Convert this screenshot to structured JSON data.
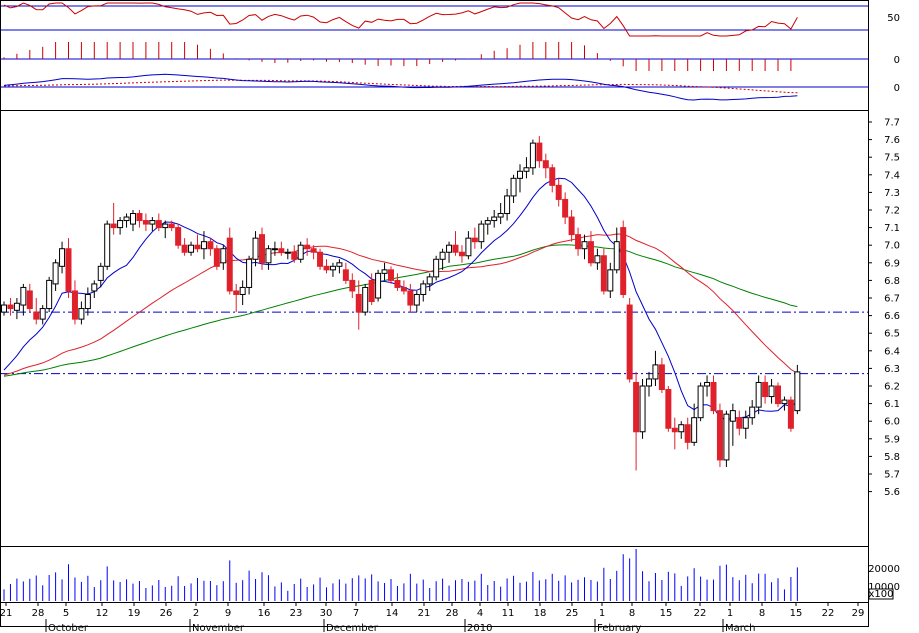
{
  "chart_data": {
    "type": "candlestick",
    "colors": {
      "background": "#ffffff",
      "frame": "#000000",
      "up_body": "#ffffff",
      "down_body": "#e0202a",
      "candle_outline": "#000000",
      "ma_short": "#0000cc",
      "ma_medium": "#e0202a",
      "ma_long": "#008000",
      "level_line": "#0000cc",
      "volume_bar": "#0000ff",
      "oscillator_line": "#cc0000",
      "macd_hist": "#cc0000",
      "macd_line": "#0000cc",
      "signal_line": "#cc0000"
    },
    "price_axis": {
      "ticks": [
        "7.7",
        "7.6",
        "7.5",
        "7.4",
        "7.3",
        "7.2",
        "7.1",
        "7.0",
        "6.9",
        "6.8",
        "6.7",
        "6.6",
        "6.5",
        "6.4",
        "6.3",
        "6.2",
        "6.1",
        "6.0",
        "5.9",
        "5.8",
        "5.7",
        "5.6"
      ],
      "range": [
        5.55,
        7.75
      ]
    },
    "oscillator_axis": {
      "ticks": [
        "50"
      ]
    },
    "histogram_axis": {
      "ticks": [
        "0"
      ]
    },
    "macd_axis": {
      "ticks": [
        "0"
      ]
    },
    "volume_axis": {
      "ticks": [
        "20000",
        "10000"
      ],
      "scale_label": "x100"
    },
    "x_day_ticks": [
      "21",
      "28",
      "5",
      "12",
      "19",
      "26",
      "2",
      "9",
      "16",
      "23",
      "30",
      "7",
      "14",
      "21",
      "28",
      "4",
      "11",
      "18",
      "25",
      "1",
      "8",
      "15",
      "22",
      "1",
      "8",
      "15",
      "22",
      "29"
    ],
    "x_month_labels": [
      "October",
      "November",
      "December",
      "2010",
      "February",
      "March"
    ],
    "horizontal_levels": [
      6.62,
      6.27
    ],
    "candles": [
      [
        6.62,
        6.68,
        6.6,
        6.66
      ],
      [
        6.66,
        6.7,
        6.6,
        6.64
      ],
      [
        6.63,
        6.7,
        6.58,
        6.67
      ],
      [
        6.66,
        6.78,
        6.6,
        6.76
      ],
      [
        6.74,
        6.78,
        6.62,
        6.64
      ],
      [
        6.62,
        6.7,
        6.55,
        6.58
      ],
      [
        6.58,
        6.66,
        6.55,
        6.64
      ],
      [
        6.64,
        6.82,
        6.62,
        6.8
      ],
      [
        6.78,
        6.92,
        6.74,
        6.9
      ],
      [
        6.88,
        7.02,
        6.84,
        6.98
      ],
      [
        6.98,
        7.04,
        6.7,
        6.74
      ],
      [
        6.74,
        6.8,
        6.55,
        6.58
      ],
      [
        6.58,
        6.68,
        6.55,
        6.64
      ],
      [
        6.64,
        6.76,
        6.6,
        6.72
      ],
      [
        6.74,
        6.8,
        6.7,
        6.78
      ],
      [
        6.8,
        6.9,
        6.76,
        6.88
      ],
      [
        6.88,
        7.14,
        6.86,
        7.12
      ],
      [
        7.12,
        7.24,
        7.06,
        7.1
      ],
      [
        7.1,
        7.16,
        7.06,
        7.14
      ],
      [
        7.14,
        7.18,
        7.1,
        7.16
      ],
      [
        7.12,
        7.2,
        7.08,
        7.18
      ],
      [
        7.18,
        7.2,
        7.1,
        7.14
      ],
      [
        7.14,
        7.18,
        7.08,
        7.12
      ],
      [
        7.12,
        7.16,
        7.08,
        7.14
      ],
      [
        7.14,
        7.18,
        7.08,
        7.1
      ],
      [
        7.1,
        7.14,
        7.04,
        7.12
      ],
      [
        7.12,
        7.14,
        7.08,
        7.1
      ],
      [
        7.1,
        7.12,
        6.98,
        7.0
      ],
      [
        7.0,
        7.04,
        6.94,
        6.96
      ],
      [
        6.96,
        7.02,
        6.94,
        7.0
      ],
      [
        7.0,
        7.06,
        6.96,
        6.98
      ],
      [
        6.98,
        7.08,
        6.92,
        7.02
      ],
      [
        7.02,
        7.04,
        6.94,
        6.98
      ],
      [
        6.98,
        7.0,
        6.86,
        6.88
      ],
      [
        6.9,
        7.0,
        6.86,
        6.98
      ],
      [
        7.04,
        7.1,
        6.72,
        6.74
      ],
      [
        6.74,
        6.78,
        6.62,
        6.72
      ],
      [
        6.72,
        6.8,
        6.66,
        6.76
      ],
      [
        6.76,
        6.94,
        6.72,
        6.92
      ],
      [
        6.92,
        7.08,
        6.88,
        7.04
      ],
      [
        7.06,
        7.1,
        6.86,
        6.9
      ],
      [
        6.9,
        7.0,
        6.86,
        6.98
      ],
      [
        6.98,
        7.02,
        6.94,
        6.98
      ],
      [
        6.98,
        7.02,
        6.94,
        6.96
      ],
      [
        6.96,
        6.98,
        6.92,
        6.96
      ],
      [
        6.96,
        7.0,
        6.9,
        6.92
      ],
      [
        6.92,
        7.02,
        6.9,
        7.0
      ],
      [
        7.0,
        7.04,
        6.94,
        6.98
      ],
      [
        6.98,
        7.0,
        6.92,
        6.96
      ],
      [
        6.96,
        6.98,
        6.86,
        6.88
      ],
      [
        6.88,
        6.92,
        6.84,
        6.86
      ],
      [
        6.86,
        6.9,
        6.82,
        6.88
      ],
      [
        6.88,
        6.92,
        6.84,
        6.9
      ],
      [
        6.86,
        6.9,
        6.78,
        6.8
      ],
      [
        6.8,
        6.84,
        6.7,
        6.74
      ],
      [
        6.72,
        6.8,
        6.52,
        6.62
      ],
      [
        6.62,
        6.78,
        6.6,
        6.76
      ],
      [
        6.8,
        6.84,
        6.66,
        6.68
      ],
      [
        6.7,
        6.86,
        6.68,
        6.84
      ],
      [
        6.84,
        6.9,
        6.8,
        6.86
      ],
      [
        6.86,
        6.88,
        6.78,
        6.8
      ],
      [
        6.8,
        6.84,
        6.74,
        6.76
      ],
      [
        6.76,
        6.8,
        6.72,
        6.74
      ],
      [
        6.74,
        6.78,
        6.62,
        6.66
      ],
      [
        6.66,
        6.74,
        6.62,
        6.72
      ],
      [
        6.72,
        6.8,
        6.68,
        6.78
      ],
      [
        6.78,
        6.84,
        6.74,
        6.82
      ],
      [
        6.82,
        6.94,
        6.8,
        6.92
      ],
      [
        6.92,
        6.98,
        6.86,
        6.96
      ],
      [
        6.96,
        7.02,
        6.9,
        7.0
      ],
      [
        7.0,
        7.08,
        6.94,
        6.96
      ],
      [
        6.96,
        7.0,
        6.9,
        6.94
      ],
      [
        6.94,
        7.08,
        6.92,
        7.04
      ],
      [
        7.04,
        7.1,
        6.98,
        7.02
      ],
      [
        7.02,
        7.14,
        6.98,
        7.12
      ],
      [
        7.12,
        7.16,
        7.06,
        7.14
      ],
      [
        7.14,
        7.2,
        7.1,
        7.16
      ],
      [
        7.16,
        7.24,
        7.12,
        7.18
      ],
      [
        7.18,
        7.32,
        7.14,
        7.28
      ],
      [
        7.28,
        7.4,
        7.24,
        7.38
      ],
      [
        7.38,
        7.46,
        7.3,
        7.42
      ],
      [
        7.42,
        7.5,
        7.38,
        7.44
      ],
      [
        7.44,
        7.6,
        7.4,
        7.58
      ],
      [
        7.58,
        7.62,
        7.44,
        7.48
      ],
      [
        7.48,
        7.52,
        7.38,
        7.44
      ],
      [
        7.44,
        7.46,
        7.3,
        7.34
      ],
      [
        7.34,
        7.38,
        7.22,
        7.26
      ],
      [
        7.26,
        7.3,
        7.12,
        7.16
      ],
      [
        7.16,
        7.2,
        7.02,
        7.06
      ],
      [
        7.06,
        7.1,
        6.94,
        6.98
      ],
      [
        6.98,
        7.06,
        6.92,
        7.02
      ],
      [
        7.02,
        7.08,
        6.88,
        6.9
      ],
      [
        6.9,
        6.98,
        6.86,
        6.94
      ],
      [
        6.94,
        6.98,
        6.72,
        6.74
      ],
      [
        6.74,
        6.9,
        6.7,
        6.86
      ],
      [
        6.86,
        7.1,
        6.84,
        7.02
      ],
      [
        7.1,
        7.14,
        6.7,
        6.72
      ],
      [
        6.66,
        6.7,
        6.22,
        6.24
      ],
      [
        6.22,
        6.28,
        5.72,
        5.94
      ],
      [
        5.94,
        6.24,
        5.9,
        6.2
      ],
      [
        6.2,
        6.28,
        6.14,
        6.24
      ],
      [
        6.24,
        6.4,
        6.2,
        6.32
      ],
      [
        6.32,
        6.36,
        6.16,
        6.18
      ],
      [
        6.18,
        6.2,
        5.94,
        5.96
      ],
      [
        5.96,
        6.02,
        5.84,
        5.94
      ],
      [
        5.94,
        6.0,
        5.9,
        5.98
      ],
      [
        5.98,
        6.02,
        5.84,
        5.88
      ],
      [
        5.88,
        6.1,
        5.86,
        6.02
      ],
      [
        6.02,
        6.22,
        6.0,
        6.2
      ],
      [
        6.2,
        6.26,
        6.14,
        6.22
      ],
      [
        6.22,
        6.26,
        6.04,
        6.06
      ],
      [
        6.06,
        6.1,
        5.74,
        5.78
      ],
      [
        5.78,
        6.06,
        5.74,
        6.04
      ],
      [
        6.0,
        6.1,
        5.86,
        6.06
      ],
      [
        6.02,
        6.06,
        5.92,
        5.96
      ],
      [
        5.96,
        6.06,
        5.9,
        6.02
      ],
      [
        6.02,
        6.12,
        5.98,
        6.08
      ],
      [
        6.08,
        6.26,
        6.04,
        6.22
      ],
      [
        6.22,
        6.26,
        6.1,
        6.14
      ],
      [
        6.14,
        6.24,
        6.1,
        6.2
      ],
      [
        6.2,
        6.22,
        6.08,
        6.1
      ],
      [
        6.1,
        6.14,
        6.06,
        6.12
      ],
      [
        6.12,
        6.14,
        5.94,
        5.96
      ],
      [
        6.06,
        6.32,
        6.04,
        6.28
      ]
    ]
  }
}
